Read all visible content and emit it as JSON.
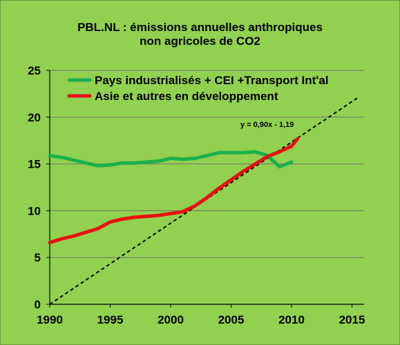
{
  "chart_data": {
    "type": "line",
    "title_line1": "PBL.NL : émissions annuelles anthropiques",
    "title_line2": "non agricoles de CO2",
    "xlabel": "",
    "ylabel": "",
    "xlim": [
      1990,
      2016
    ],
    "ylim": [
      0,
      25
    ],
    "x_ticks": [
      1990,
      1995,
      2000,
      2005,
      2010,
      2015
    ],
    "y_ticks": [
      0,
      5,
      10,
      15,
      20,
      25
    ],
    "grid": "horizontal",
    "legend_position": "top",
    "series": [
      {
        "name": "Pays industrialisés + CEI +Transport Int'al",
        "color": "#1ab04c",
        "x": [
          1990,
          1991,
          1992,
          1993,
          1994,
          1995,
          1996,
          1997,
          1998,
          1999,
          2000,
          2001,
          2002,
          2003,
          2004,
          2005,
          2006,
          2007,
          2008,
          2009,
          2010
        ],
        "values": [
          15.9,
          15.7,
          15.4,
          15.1,
          14.8,
          14.9,
          15.1,
          15.1,
          15.2,
          15.3,
          15.6,
          15.5,
          15.6,
          15.9,
          16.2,
          16.2,
          16.2,
          16.3,
          15.9,
          14.7,
          15.2
        ]
      },
      {
        "name": "Asie et autres en développement",
        "color": "#e81010",
        "x": [
          1990,
          1991,
          1992,
          1993,
          1994,
          1995,
          1996,
          1997,
          1998,
          1999,
          2000,
          2001,
          2002,
          2003,
          2004,
          2005,
          2006,
          2007,
          2008,
          2009,
          2010,
          2010.5
        ],
        "values": [
          6.6,
          7.0,
          7.3,
          7.7,
          8.1,
          8.8,
          9.1,
          9.3,
          9.4,
          9.5,
          9.7,
          9.9,
          10.5,
          11.4,
          12.4,
          13.3,
          14.2,
          15.0,
          15.8,
          16.3,
          16.9,
          17.7
        ]
      }
    ],
    "trendline": {
      "label": "y = 0,90x - 1,19",
      "color": "#000000",
      "style": "dashed",
      "slope_per_year": 0.9,
      "x_start": 1990,
      "x_end": 2015.5,
      "y_at_start": 0,
      "y_at_end": 22.1
    }
  }
}
